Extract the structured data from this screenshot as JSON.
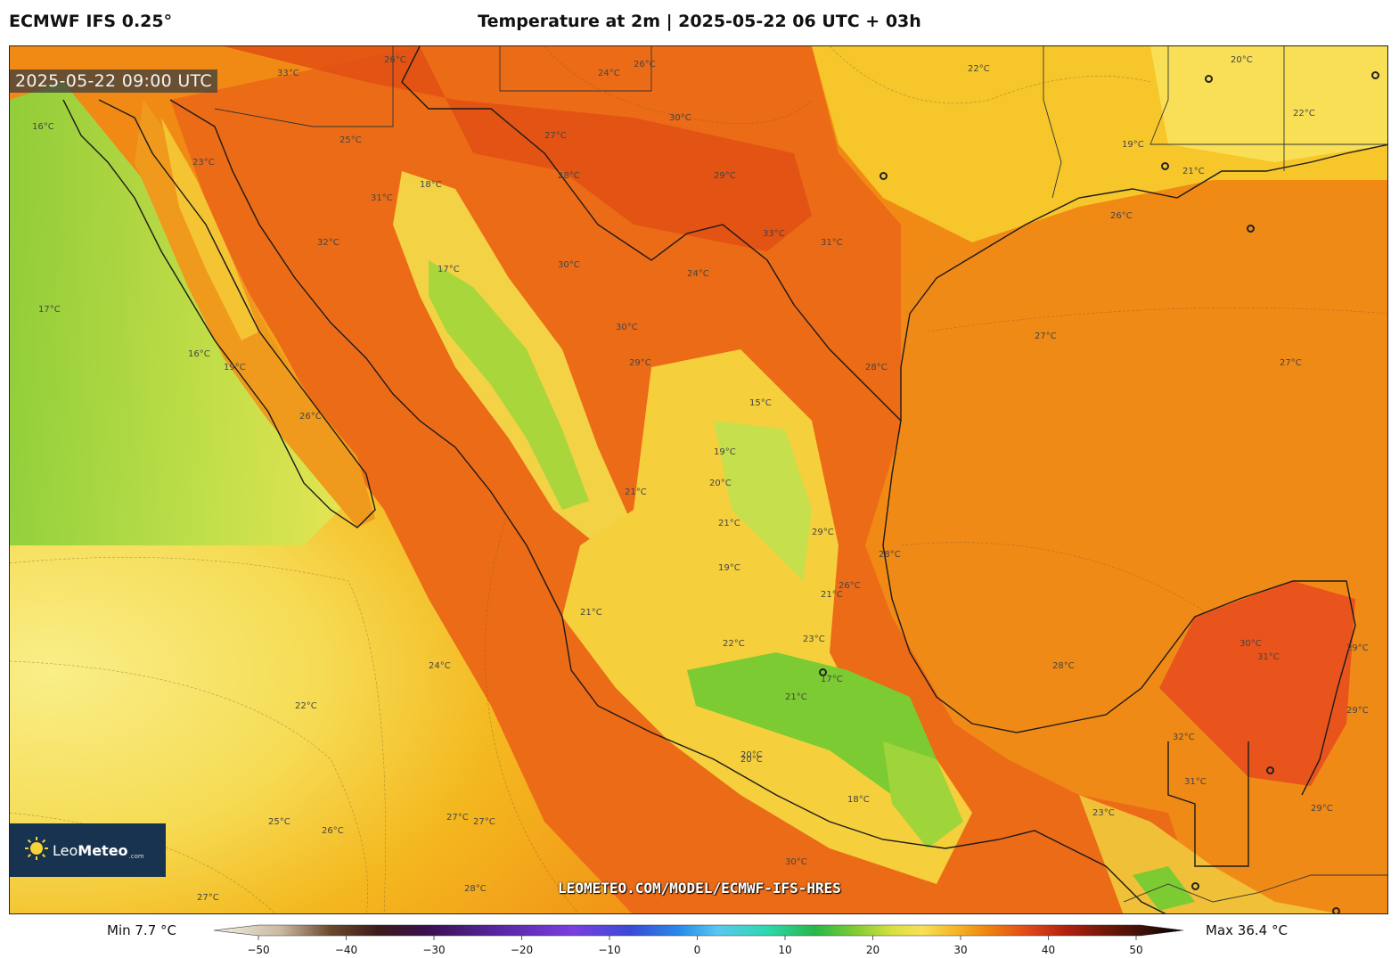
{
  "header": {
    "model_title": "ECMWF IFS 0.25°",
    "main_title": "Temperature at 2m | 2025-05-22 06 UTC + 03h"
  },
  "map": {
    "valid_time": "2025-05-22 09:00 UTC",
    "watermark": "LEOMETEO.COM/MODEL/ECMWF-IFS-HRES",
    "logo": {
      "name_light": "Leo",
      "name_bold": "Meteo",
      "suffix": ".com",
      "icon": "sun-icon"
    },
    "isotherm_labels": [
      "33°C",
      "26°C",
      "24°C",
      "30°C",
      "29°C",
      "26°C",
      "22°C",
      "20°C",
      "22°C",
      "16°C",
      "23°C",
      "25°C",
      "27°C",
      "28°C",
      "31°C",
      "18°C",
      "21°C",
      "32°C",
      "17°C",
      "33°C",
      "31°C",
      "30°C",
      "24°C",
      "26°C",
      "19°C",
      "16°C",
      "17°C",
      "19°C",
      "26°C",
      "28°C",
      "30°C",
      "29°C",
      "21°C",
      "20°C",
      "15°C",
      "19°C",
      "27°C",
      "27°C",
      "21°C",
      "29°C",
      "26°C",
      "21°C",
      "23°C",
      "19°C",
      "28°C",
      "21°C",
      "24°C",
      "21°C",
      "20°C",
      "28°C",
      "30°C",
      "31°C",
      "22°C",
      "17°C",
      "22°C",
      "23°C",
      "29°C",
      "32°C",
      "31°C",
      "18°C",
      "20°C",
      "27°C",
      "29°C",
      "29°C",
      "25°C",
      "26°C",
      "27°C",
      "30°C",
      "28°C",
      "27°C"
    ]
  },
  "colorbar": {
    "min_label": "Min 7.7 °C",
    "max_label": "Max 36.4 °C",
    "ticks": [
      "−50",
      "−40",
      "−30",
      "−20",
      "−10",
      "0",
      "10",
      "20",
      "30",
      "40",
      "50"
    ],
    "range": [
      -50,
      50
    ]
  },
  "colors": {
    "ocean_cold": "#f7e772",
    "ocean_mild": "#f3b320",
    "ocean_warm": "#f28a10",
    "land_hot": "#e7561a",
    "land_cool": "#9ed53c",
    "land_cold": "#6cc42c",
    "coast_line": "#1a1a1a",
    "logo_bg": "#17334f"
  }
}
